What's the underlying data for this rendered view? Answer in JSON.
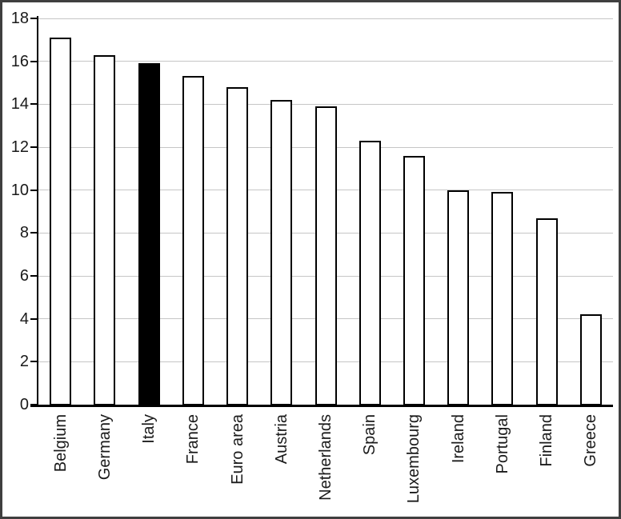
{
  "chart_data": {
    "type": "bar",
    "categories": [
      "Belgium",
      "Germany",
      "Italy",
      "France",
      "Euro area",
      "Austria",
      "Netherlands",
      "Spain",
      "Luxembourg",
      "Ireland",
      "Portugal",
      "Finland",
      "Greece"
    ],
    "values": [
      17.1,
      16.3,
      15.9,
      15.3,
      14.8,
      14.2,
      13.9,
      12.3,
      11.6,
      10.0,
      9.9,
      8.7,
      4.2
    ],
    "highlighted_category": "Italy",
    "ylim": [
      0,
      18
    ],
    "yticks": [
      0,
      2,
      4,
      6,
      8,
      10,
      12,
      14,
      16,
      18
    ],
    "grid": true,
    "legend_position": "none",
    "styles": {
      "bar_fill": "#ffffff",
      "highlight_fill": "#000000",
      "bar_border": "#000000",
      "gridline_color": "#c6c6c6",
      "axis_color": "#000000",
      "text_color": "#1a1a1a",
      "frame_border_color": "#3f3f3f",
      "background": "#ffffff"
    }
  }
}
